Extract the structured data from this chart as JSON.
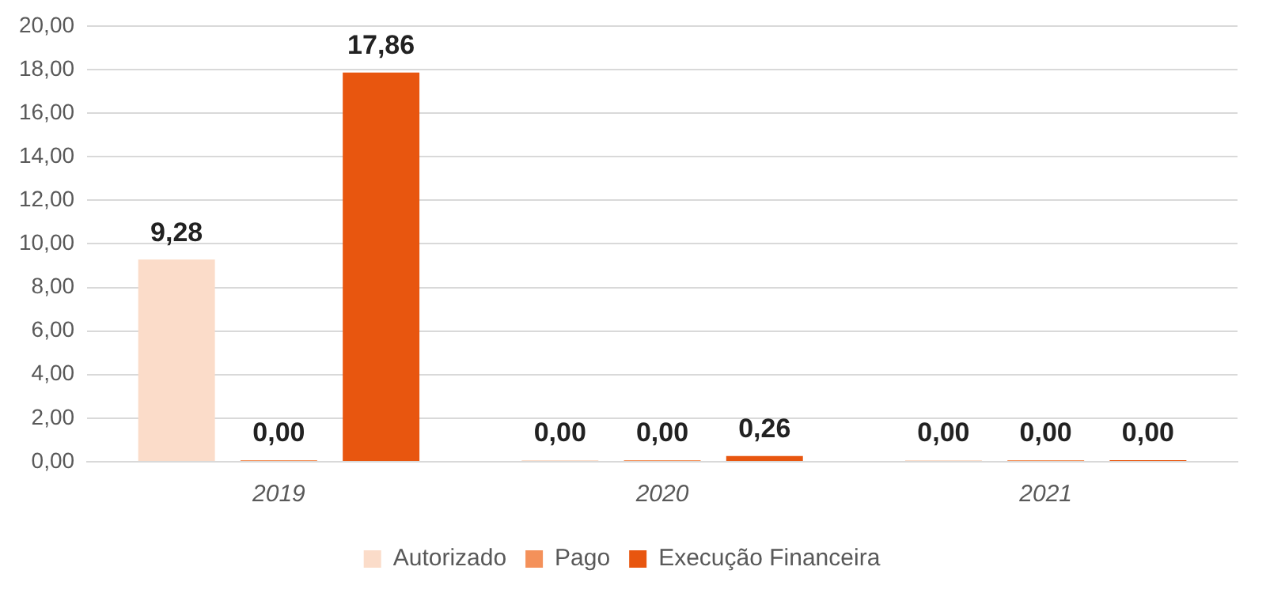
{
  "chart_data": {
    "type": "bar",
    "categories": [
      "2019",
      "2020",
      "2021"
    ],
    "series": [
      {
        "name": "Autorizado",
        "color": "#fbdcc9",
        "values": [
          9.28,
          0,
          0
        ],
        "value_labels": [
          "9,28",
          "0,00",
          "0,00"
        ]
      },
      {
        "name": "Pago",
        "color": "#f4915a",
        "values": [
          0,
          0,
          0
        ],
        "value_labels": [
          "0,00",
          "0,00",
          "0,00"
        ]
      },
      {
        "name": "Execução Financeira",
        "color": "#e8560f",
        "values": [
          17.86,
          0.26,
          0
        ],
        "value_labels": [
          "17,86",
          "0,26",
          "0,00"
        ]
      }
    ],
    "ylim": [
      0,
      20
    ],
    "yticks": [
      {
        "value": 0,
        "label": "0,00"
      },
      {
        "value": 2,
        "label": "2,00"
      },
      {
        "value": 4,
        "label": "4,00"
      },
      {
        "value": 6,
        "label": "6,00"
      },
      {
        "value": 8,
        "label": "8,00"
      },
      {
        "value": 10,
        "label": "10,00"
      },
      {
        "value": 12,
        "label": "12,00"
      },
      {
        "value": 14,
        "label": "14,00"
      },
      {
        "value": 16,
        "label": "16,00"
      },
      {
        "value": 18,
        "label": "18,00"
      },
      {
        "value": 20,
        "label": "20,00"
      }
    ],
    "grid": "y",
    "legend": "bottom"
  }
}
